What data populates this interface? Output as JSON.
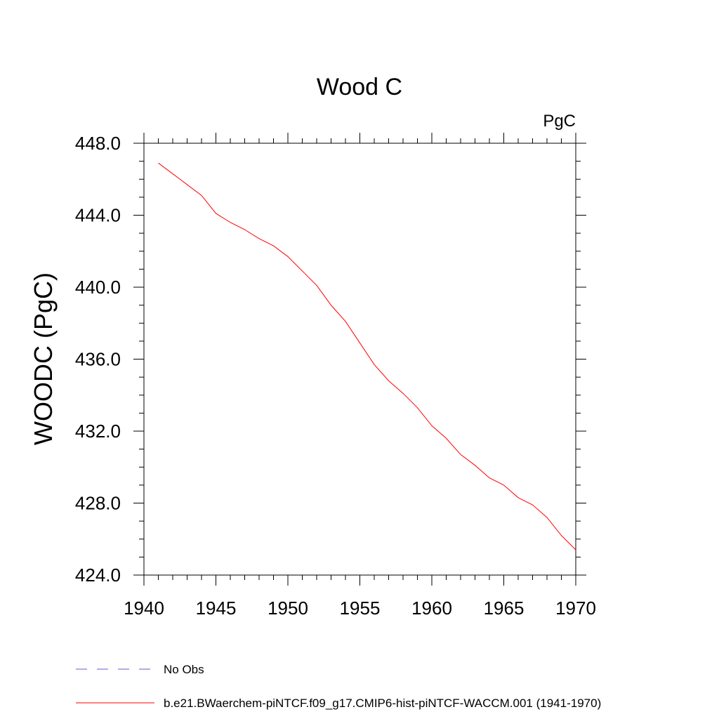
{
  "chart_data": {
    "type": "line",
    "title": "Wood C",
    "units_label": "PgC",
    "ylabel": "WOODC  (PgC)",
    "xlabel": "",
    "xlim": [
      1940,
      1970
    ],
    "ylim": [
      424.0,
      448.0
    ],
    "x_ticks": [
      1940,
      1945,
      1950,
      1955,
      1960,
      1965,
      1970
    ],
    "y_ticks": [
      424.0,
      428.0,
      432.0,
      436.0,
      440.0,
      444.0,
      448.0
    ],
    "x_tick_labels": [
      "1940",
      "1945",
      "1950",
      "1955",
      "1960",
      "1965",
      "1970"
    ],
    "y_tick_labels": [
      "424.0",
      "428.0",
      "432.0",
      "436.0",
      "440.0",
      "444.0",
      "448.0"
    ],
    "grid": false,
    "legend_position": "bottom-left",
    "series": [
      {
        "name": "No Obs",
        "color": "#6a5acd",
        "style": "dashed",
        "x": [],
        "y": []
      },
      {
        "name": "b.e21.BWaerchem-piNTCF.f09_g17.CMIP6-hist-piNTCF-WACCM.001 (1941-1970)",
        "color": "#ff0000",
        "style": "solid",
        "x": [
          1941,
          1942,
          1943,
          1944,
          1945,
          1946,
          1947,
          1948,
          1949,
          1950,
          1951,
          1952,
          1953,
          1954,
          1955,
          1956,
          1957,
          1958,
          1959,
          1960,
          1961,
          1962,
          1963,
          1964,
          1965,
          1966,
          1967,
          1968,
          1969,
          1970
        ],
        "y": [
          446.9,
          446.3,
          445.7,
          445.1,
          444.1,
          443.6,
          443.2,
          442.7,
          442.3,
          441.7,
          440.9,
          440.1,
          439.0,
          438.1,
          436.9,
          435.7,
          434.8,
          434.1,
          433.3,
          432.3,
          431.6,
          430.7,
          430.1,
          429.4,
          429.0,
          428.3,
          427.9,
          427.2,
          426.2,
          425.4
        ]
      }
    ]
  }
}
